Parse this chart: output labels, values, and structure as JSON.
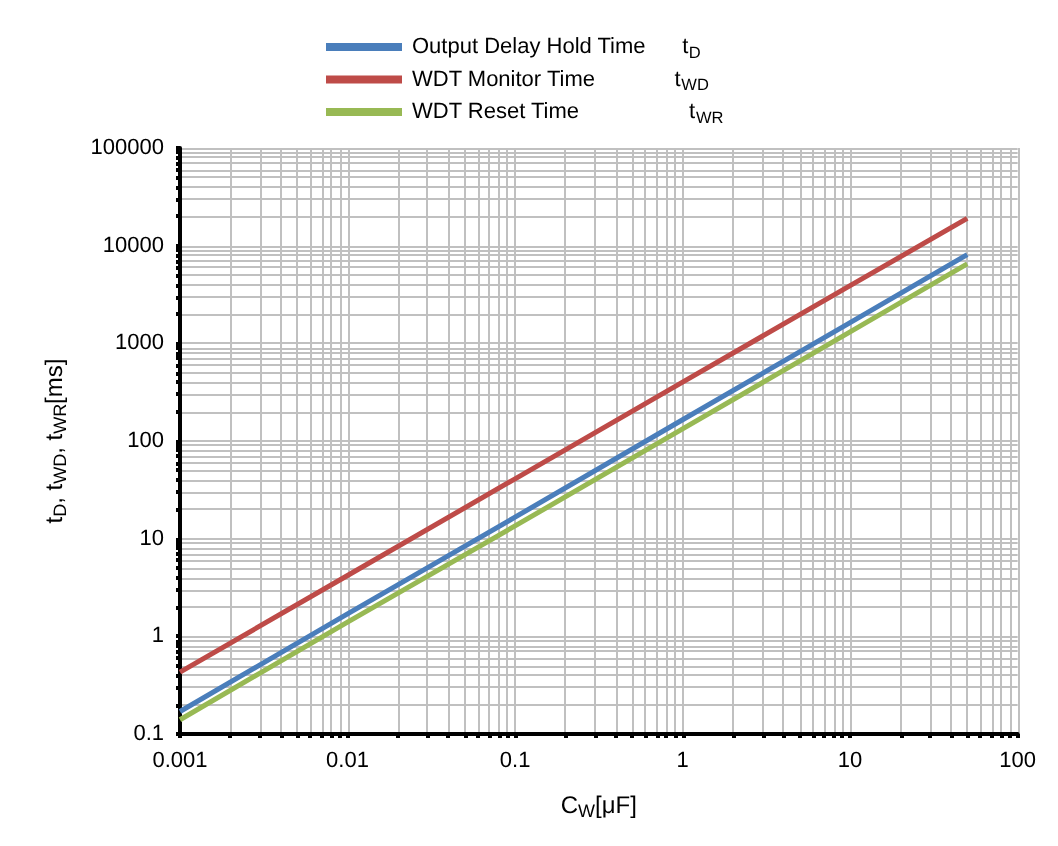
{
  "chart_data": {
    "type": "line",
    "xlabel": "C$_{W}$[μF]",
    "ylabel": "t$_{D}$, t$_{WD}$, t$_{WR}$[ms]",
    "log": "xy",
    "grid": true,
    "legend": "top",
    "marker": "none",
    "line_style": "solid",
    "xlim": [
      0.001,
      100
    ],
    "ylim": [
      0.1,
      100000
    ],
    "xticks": [
      0.001,
      {
        "value": 0.002,
        "label": null
      },
      {
        "value": 0.003,
        "label": null
      },
      {
        "value": 0.004,
        "label": null
      },
      {
        "value": 0.005,
        "label": null
      },
      {
        "value": 0.006,
        "label": null
      },
      {
        "value": 0.007,
        "label": null
      },
      {
        "value": 0.008,
        "label": null
      },
      {
        "value": 0.009,
        "label": null
      },
      0.01,
      {
        "value": 0.02,
        "label": null
      },
      {
        "value": 0.03,
        "label": null
      },
      {
        "value": 0.04,
        "label": null
      },
      {
        "value": 0.05,
        "label": null
      },
      {
        "value": 0.06,
        "label": null
      },
      {
        "value": 0.07,
        "label": null
      },
      {
        "value": 0.08,
        "label": null
      },
      {
        "value": 0.09,
        "label": null
      },
      0.1,
      {
        "value": 0.2,
        "label": null
      },
      {
        "value": 0.3,
        "label": null
      },
      {
        "value": 0.4,
        "label": null
      },
      {
        "value": 0.5,
        "label": null
      },
      {
        "value": 0.6,
        "label": null
      },
      {
        "value": 0.7,
        "label": null
      },
      {
        "value": 0.8,
        "label": null
      },
      {
        "value": 0.9,
        "label": null
      },
      1,
      {
        "value": 2,
        "label": null
      },
      {
        "value": 3,
        "label": null
      },
      {
        "value": 4,
        "label": null
      },
      {
        "value": 5,
        "label": null
      },
      {
        "value": 6,
        "label": null
      },
      {
        "value": 7,
        "label": null
      },
      {
        "value": 8,
        "label": null
      },
      {
        "value": 9,
        "label": null
      },
      10,
      {
        "value": 20,
        "label": null
      },
      {
        "value": 30,
        "label": null
      },
      {
        "value": 40,
        "label": null
      },
      {
        "value": 50,
        "label": null
      },
      {
        "value": 60,
        "label": null
      },
      {
        "value": 70,
        "label": null
      },
      {
        "value": 80,
        "label": null
      },
      {
        "value": 90,
        "label": null
      },
      100
    ],
    "yticks": [
      0.1,
      {
        "value": 0.2,
        "label": null
      },
      {
        "value": 0.3,
        "label": null
      },
      {
        "value": 0.4,
        "label": null
      },
      {
        "value": 0.5,
        "label": null
      },
      {
        "value": 0.6,
        "label": null
      },
      {
        "value": 0.7,
        "label": null
      },
      {
        "value": 0.8,
        "label": null
      },
      {
        "value": 0.9,
        "label": null
      },
      1,
      {
        "value": 2,
        "label": null
      },
      {
        "value": 3,
        "label": null
      },
      {
        "value": 4,
        "label": null
      },
      {
        "value": 5,
        "label": null
      },
      {
        "value": 6,
        "label": null
      },
      {
        "value": 7,
        "label": null
      },
      {
        "value": 8,
        "label": null
      },
      {
        "value": 9,
        "label": null
      },
      10,
      {
        "value": 20,
        "label": null
      },
      {
        "value": 30,
        "label": null
      },
      {
        "value": 40,
        "label": null
      },
      {
        "value": 50,
        "label": null
      },
      {
        "value": 60,
        "label": null
      },
      {
        "value": 70,
        "label": null
      },
      {
        "value": 80,
        "label": null
      },
      {
        "value": 90,
        "label": null
      },
      100,
      {
        "value": 200,
        "label": null
      },
      {
        "value": 300,
        "label": null
      },
      {
        "value": 400,
        "label": null
      },
      {
        "value": 500,
        "label": null
      },
      {
        "value": 600,
        "label": null
      },
      {
        "value": 700,
        "label": null
      },
      {
        "value": 800,
        "label": null
      },
      {
        "value": 900,
        "label": null
      },
      1000,
      {
        "value": 2000,
        "label": null
      },
      {
        "value": 3000,
        "label": null
      },
      {
        "value": 4000,
        "label": null
      },
      {
        "value": 5000,
        "label": null
      },
      {
        "value": 6000,
        "label": null
      },
      {
        "value": 7000,
        "label": null
      },
      {
        "value": 8000,
        "label": null
      },
      {
        "value": 9000,
        "label": null
      },
      10000,
      {
        "value": 20000,
        "label": null
      },
      {
        "value": 30000,
        "label": null
      },
      {
        "value": 40000,
        "label": null
      },
      {
        "value": 50000,
        "label": null
      },
      {
        "value": 60000,
        "label": null
      },
      {
        "value": 70000,
        "label": null
      },
      {
        "value": 80000,
        "label": null
      },
      {
        "value": 90000,
        "label": null
      },
      100000
    ],
    "series": [
      {
        "name": "Output Delay Hold Time      t$_{D}$",
        "color": "#4a7ebb",
        "x": [
          0.001,
          0.01,
          0.1,
          1,
          10,
          50
        ],
        "values": [
          0.17,
          1.7,
          16.6,
          165,
          1630,
          8100
        ]
      },
      {
        "name": "WDT Monitor Time             t$_{WD}$",
        "color": "#be4b48",
        "x": [
          0.001,
          0.01,
          0.1,
          1,
          10,
          50
        ],
        "values": [
          0.43,
          4.2,
          41,
          400,
          3900,
          19000
        ]
      },
      {
        "name": "WDT Reset Time                  t$_{WR}$",
        "color": "#98b954",
        "x": [
          0.001,
          0.01,
          0.1,
          1,
          10,
          50
        ],
        "values": [
          0.14,
          1.4,
          13.5,
          133,
          1310,
          6500
        ]
      }
    ]
  }
}
